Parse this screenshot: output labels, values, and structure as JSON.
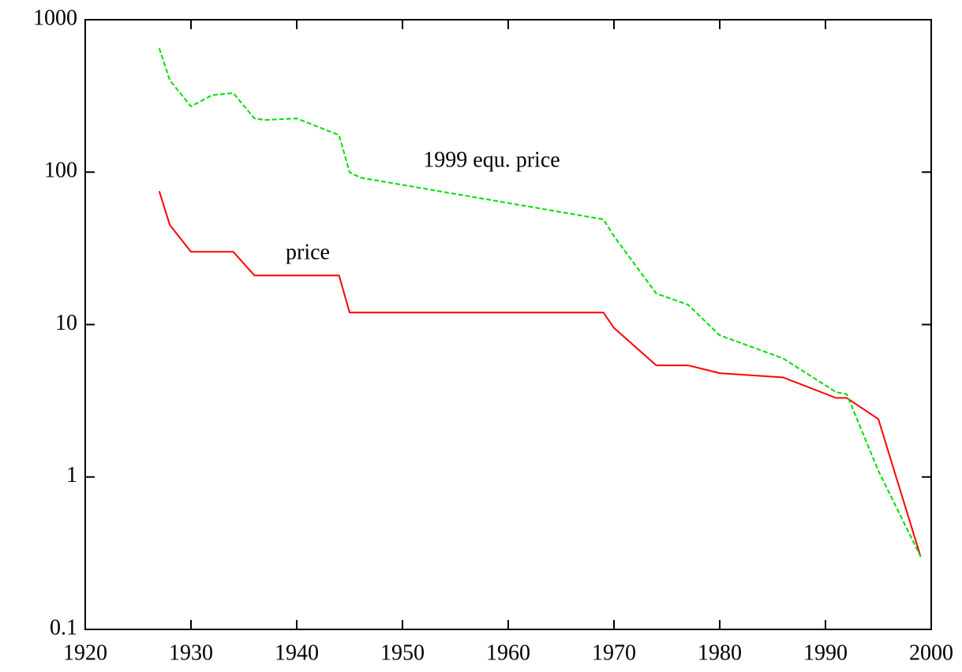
{
  "chart_data": {
    "type": "line",
    "annotations": [
      "1999 equ. price",
      "price"
    ],
    "series": [
      {
        "name": "price",
        "color": "#ff0000",
        "dash": false,
        "x": [
          1927,
          1928,
          1930,
          1934,
          1936,
          1944,
          1945,
          1969,
          1970,
          1974,
          1977,
          1980,
          1986,
          1991,
          1992,
          1995,
          1999
        ],
        "values": [
          75,
          45,
          30,
          30,
          21,
          21,
          12,
          12,
          9.5,
          5.4,
          5.4,
          4.8,
          4.5,
          3.3,
          3.3,
          2.4,
          0.3
        ]
      },
      {
        "name": "1999 equ. price",
        "color": "#00dd00",
        "dash": true,
        "x": [
          1927,
          1928,
          1930,
          1932,
          1934,
          1936,
          1937,
          1940,
          1944,
          1945,
          1946,
          1969,
          1970,
          1974,
          1977,
          1980,
          1986,
          1991,
          1992,
          1995,
          1999
        ],
        "values": [
          650,
          400,
          270,
          320,
          330,
          225,
          220,
          225,
          175,
          100,
          92,
          49,
          38,
          16,
          13.5,
          8.5,
          6,
          3.6,
          3.5,
          1.1,
          0.3
        ]
      }
    ],
    "xlim": [
      1920,
      2000
    ],
    "xticks": [
      1920,
      1930,
      1940,
      1950,
      1960,
      1970,
      1980,
      1990,
      2000
    ],
    "ylim": [
      0.1,
      1000
    ],
    "yticks": [
      0.1,
      1,
      10,
      100,
      1000
    ],
    "ylog": true,
    "grid": false,
    "legend": false
  }
}
